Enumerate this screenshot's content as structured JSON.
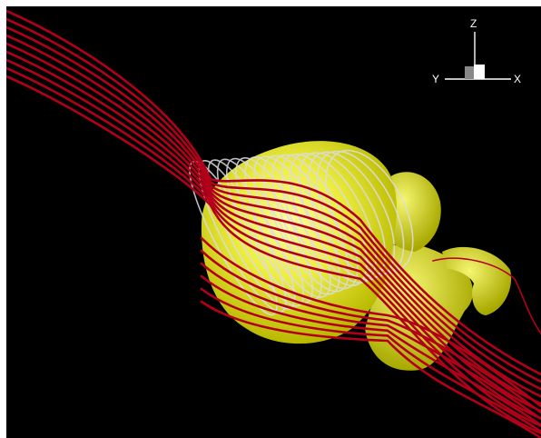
{
  "axis_triad": {
    "x_label": "X",
    "y_label": "Y",
    "z_label": "Z"
  },
  "colors": {
    "background": "#000000",
    "streamline": "#b3001a",
    "isosurface": "#f0f020",
    "vortex_lines": "#d8d8e0"
  }
}
